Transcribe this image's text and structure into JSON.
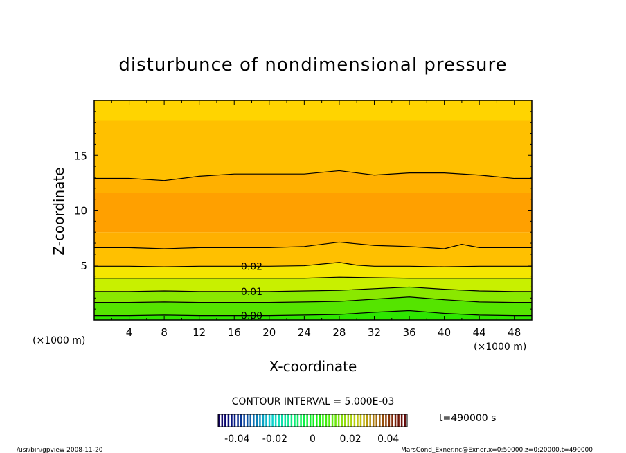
{
  "chart_data": {
    "type": "contour",
    "title": "disturbunce of nondimensional pressure",
    "xlabel": "X-coordinate",
    "ylabel": "Z-coordinate",
    "x_unit": "(×1000 m)",
    "z_unit": "(×1000 m)",
    "xlim": [
      0,
      50
    ],
    "ylim": [
      0,
      20
    ],
    "x_ticks": [
      4,
      8,
      12,
      16,
      20,
      24,
      28,
      32,
      36,
      40,
      44,
      48
    ],
    "y_ticks": [
      5,
      10,
      15
    ],
    "contour_interval_text": "CONTOUR INTERVAL = 5.000E-03",
    "time_text": "t=490000 s",
    "colorbar_ticks": [
      "-0.04",
      "-0.02",
      "0",
      "0.02",
      "0.04"
    ],
    "colorbar_range": [
      -0.05,
      0.05
    ],
    "colors": {
      "yellow": "#ffd400",
      "gold": "#ffc000",
      "light_orange": "#ffb000",
      "orange": "#ffa000",
      "green": "#2ee600"
    },
    "contour_lines": [
      {
        "label": "0.00",
        "points": [
          [
            0,
            0.4
          ],
          [
            4,
            0.4
          ],
          [
            8,
            0.45
          ],
          [
            12,
            0.4
          ],
          [
            16,
            0.4
          ],
          [
            20,
            0.4
          ],
          [
            24,
            0.45
          ],
          [
            28,
            0.5
          ],
          [
            32,
            0.7
          ],
          [
            36,
            0.85
          ],
          [
            40,
            0.6
          ],
          [
            44,
            0.45
          ],
          [
            48,
            0.4
          ],
          [
            50,
            0.4
          ]
        ]
      },
      {
        "label": "",
        "points": [
          [
            0,
            1.6
          ],
          [
            4,
            1.6
          ],
          [
            8,
            1.65
          ],
          [
            12,
            1.6
          ],
          [
            16,
            1.6
          ],
          [
            20,
            1.6
          ],
          [
            24,
            1.65
          ],
          [
            28,
            1.7
          ],
          [
            32,
            1.9
          ],
          [
            36,
            2.1
          ],
          [
            40,
            1.85
          ],
          [
            44,
            1.65
          ],
          [
            48,
            1.6
          ],
          [
            50,
            1.6
          ]
        ]
      },
      {
        "label": "0.01",
        "points": [
          [
            0,
            2.6
          ],
          [
            4,
            2.6
          ],
          [
            8,
            2.65
          ],
          [
            12,
            2.6
          ],
          [
            16,
            2.6
          ],
          [
            20,
            2.6
          ],
          [
            24,
            2.65
          ],
          [
            28,
            2.7
          ],
          [
            32,
            2.85
          ],
          [
            36,
            3.0
          ],
          [
            40,
            2.8
          ],
          [
            44,
            2.65
          ],
          [
            48,
            2.6
          ],
          [
            50,
            2.6
          ]
        ]
      },
      {
        "label": "",
        "points": [
          [
            0,
            3.8
          ],
          [
            4,
            3.8
          ],
          [
            8,
            3.8
          ],
          [
            12,
            3.8
          ],
          [
            16,
            3.8
          ],
          [
            20,
            3.8
          ],
          [
            24,
            3.8
          ],
          [
            28,
            3.9
          ],
          [
            32,
            3.85
          ],
          [
            36,
            3.8
          ],
          [
            40,
            3.8
          ],
          [
            44,
            3.8
          ],
          [
            48,
            3.8
          ],
          [
            50,
            3.8
          ]
        ]
      },
      {
        "label": "0.02",
        "points": [
          [
            0,
            4.9
          ],
          [
            4,
            4.9
          ],
          [
            8,
            4.85
          ],
          [
            12,
            4.9
          ],
          [
            16,
            4.9
          ],
          [
            20,
            4.9
          ],
          [
            24,
            4.95
          ],
          [
            28,
            5.25
          ],
          [
            30,
            5.0
          ],
          [
            32,
            4.9
          ],
          [
            36,
            4.9
          ],
          [
            40,
            4.85
          ],
          [
            44,
            4.9
          ],
          [
            48,
            4.9
          ],
          [
            50,
            4.9
          ]
        ]
      },
      {
        "label": "",
        "points": [
          [
            0,
            6.6
          ],
          [
            4,
            6.6
          ],
          [
            8,
            6.5
          ],
          [
            12,
            6.6
          ],
          [
            16,
            6.6
          ],
          [
            20,
            6.6
          ],
          [
            24,
            6.7
          ],
          [
            28,
            7.1
          ],
          [
            32,
            6.8
          ],
          [
            36,
            6.7
          ],
          [
            40,
            6.5
          ],
          [
            42,
            6.9
          ],
          [
            44,
            6.6
          ],
          [
            48,
            6.6
          ],
          [
            50,
            6.6
          ]
        ]
      },
      {
        "label": "",
        "points": [
          [
            0,
            12.9
          ],
          [
            4,
            12.9
          ],
          [
            8,
            12.7
          ],
          [
            12,
            13.1
          ],
          [
            16,
            13.3
          ],
          [
            20,
            13.3
          ],
          [
            24,
            13.3
          ],
          [
            28,
            13.6
          ],
          [
            32,
            13.2
          ],
          [
            36,
            13.4
          ],
          [
            40,
            13.4
          ],
          [
            44,
            13.2
          ],
          [
            48,
            12.9
          ],
          [
            50,
            12.9
          ]
        ]
      }
    ]
  },
  "footer": {
    "left": "/usr/bin/gpview   2008-11-20",
    "right": "MarsCond_Exner.nc@Exner,x=0:50000,z=0:20000,t=490000"
  }
}
